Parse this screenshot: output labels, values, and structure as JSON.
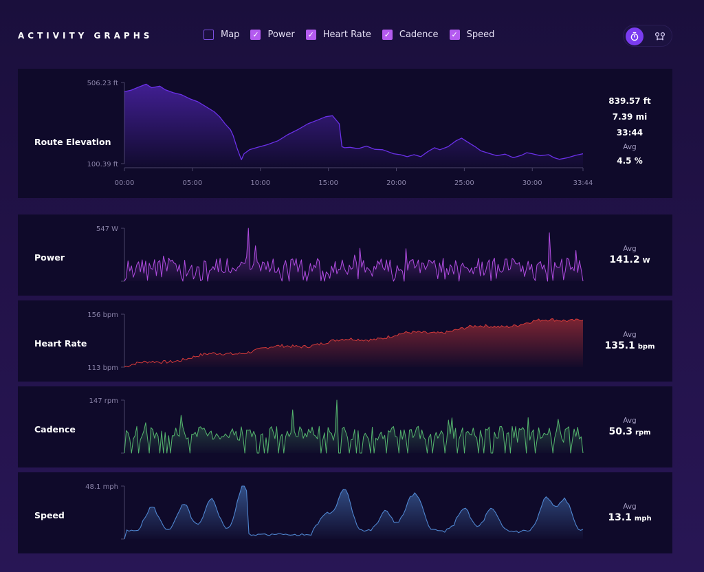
{
  "header": {
    "title": "ACTIVITY GRAPHS",
    "toggles": [
      {
        "label": "Map",
        "checked": false
      },
      {
        "label": "Power",
        "checked": true
      },
      {
        "label": "Heart Rate",
        "checked": true
      },
      {
        "label": "Cadence",
        "checked": true
      },
      {
        "label": "Speed",
        "checked": true
      }
    ],
    "modes": [
      {
        "icon": "stopwatch-icon",
        "active": true
      },
      {
        "icon": "route-icon",
        "active": false
      }
    ]
  },
  "colors": {
    "accent": "#7a3cf0",
    "elevation": "#6a30e8",
    "power": "#b04ce0",
    "heart_rate": "#d53a3a",
    "cadence": "#55b56e",
    "speed": "#4f86d0"
  },
  "elevation_stats": {
    "total_elevation": "839.57 ft",
    "distance": "7.39 mi",
    "duration": "33:44",
    "avg_label": "Avg",
    "avg_grade": "4.5 %"
  },
  "panels": {
    "elevation": {
      "label": "Route Elevation"
    },
    "power": {
      "label": "Power",
      "avg_label": "Avg",
      "avg_value": "141.2",
      "avg_unit": "W"
    },
    "heart_rate": {
      "label": "Heart Rate",
      "avg_label": "Avg",
      "avg_value": "135.1",
      "avg_unit": "bpm"
    },
    "cadence": {
      "label": "Cadence",
      "avg_label": "Avg",
      "avg_value": "50.3",
      "avg_unit": "rpm"
    },
    "speed": {
      "label": "Speed",
      "avg_label": "Avg",
      "avg_value": "13.1",
      "avg_unit": "mph"
    }
  },
  "chart_data": [
    {
      "id": "elevation",
      "type": "area",
      "unit": "ft",
      "ylim": [
        100.39,
        506.23
      ],
      "y_ticks": [
        "506.23 ft",
        "100.39 ft"
      ],
      "x_ticks": [
        "00:00",
        "05:00",
        "10:00",
        "15:00",
        "20:00",
        "25:00",
        "30:00",
        "33:44"
      ],
      "x_tick_minutes": [
        0,
        5,
        10,
        15,
        20,
        25,
        30,
        33.73
      ],
      "x_max_minutes": 33.73,
      "x_minutes": [
        0,
        0.5,
        1.0,
        1.6,
        2.0,
        2.6,
        3.0,
        3.6,
        4.2,
        4.8,
        5.4,
        6.0,
        6.6,
        7.0,
        7.4,
        7.8,
        8.0,
        8.3,
        8.6,
        8.8,
        9.2,
        9.8,
        10.5,
        11.3,
        12.0,
        12.8,
        13.5,
        14.2,
        14.8,
        15.3,
        15.8,
        16.0,
        16.2,
        16.6,
        17.2,
        17.8,
        18.4,
        19.0,
        19.4,
        19.8,
        20.3,
        20.8,
        21.3,
        21.8,
        22.3,
        22.8,
        23.2,
        23.8,
        24.4,
        24.8,
        25.2,
        25.8,
        26.2,
        26.8,
        27.4,
        28.0,
        28.6,
        29.2,
        29.6,
        30.0,
        30.6,
        31.2,
        31.6,
        32.0,
        32.6,
        33.2,
        33.73
      ],
      "y_ft": [
        460,
        468,
        482,
        498,
        480,
        488,
        470,
        455,
        445,
        425,
        410,
        385,
        360,
        335,
        300,
        270,
        240,
        175,
        120,
        150,
        170,
        182,
        195,
        215,
        245,
        272,
        300,
        318,
        335,
        340,
        300,
        185,
        180,
        182,
        175,
        188,
        172,
        170,
        160,
        150,
        145,
        135,
        145,
        135,
        160,
        180,
        170,
        185,
        215,
        228,
        210,
        185,
        165,
        152,
        140,
        148,
        130,
        142,
        155,
        150,
        140,
        145,
        130,
        122,
        130,
        142,
        150
      ]
    },
    {
      "id": "power",
      "type": "area",
      "unit": "W",
      "ylim": [
        0,
        547
      ],
      "y_ticks": [
        "547 W"
      ],
      "points": 260,
      "max": 547,
      "mean": 141.2
    },
    {
      "id": "heart_rate",
      "type": "area",
      "unit": "bpm",
      "ylim": [
        113,
        156
      ],
      "y_ticks": [
        "156 bpm",
        "113 bpm"
      ],
      "points": 260,
      "start": 113,
      "end": 153,
      "mean": 135.1
    },
    {
      "id": "cadence",
      "type": "area",
      "unit": "rpm",
      "ylim": [
        0,
        147
      ],
      "y_ticks": [
        "147 rpm"
      ],
      "points": 260,
      "max": 147,
      "mean": 50.3
    },
    {
      "id": "speed",
      "type": "area",
      "unit": "mph",
      "ylim": [
        0,
        48.1
      ],
      "y_ticks": [
        "48.1 mph"
      ],
      "points": 200,
      "max": 48.1,
      "mean": 13.1
    }
  ]
}
